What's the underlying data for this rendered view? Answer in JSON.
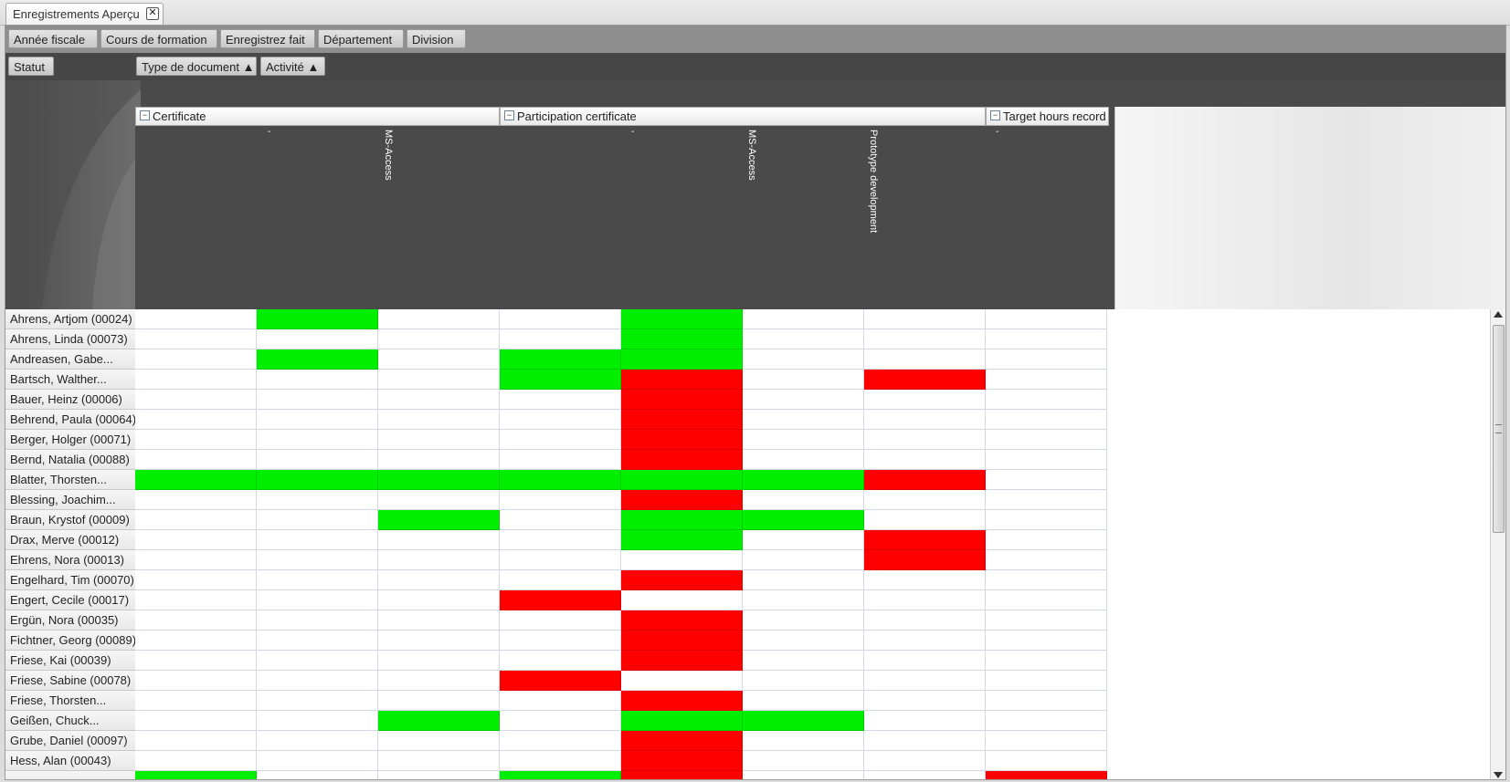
{
  "tab": {
    "label": "Enregistrements Aperçu",
    "close_glyph": "✕"
  },
  "filters": [
    "Année fiscale",
    "Cours de formation",
    "Enregistrez fait",
    "Département",
    "Division"
  ],
  "row_field": "Statut",
  "column_fields": [
    "Type de document ▲",
    "Activité ▲"
  ],
  "groups": [
    {
      "label": "Certificate",
      "columns": [
        "-",
        "",
        "MS-Access"
      ]
    },
    {
      "label": "Participation certificate",
      "columns": [
        "-",
        "",
        "MS-Access",
        "Prototype development"
      ]
    },
    {
      "label": "Target hours record",
      "columns": [
        "-"
      ]
    }
  ],
  "colors": {
    "green": "#00ee00",
    "red": "#ff0000"
  },
  "legend_codes": {
    "G": "green",
    "R": "red",
    "": "empty"
  },
  "rows": [
    {
      "name": "Ahrens, Artjom (00024)",
      "cells": [
        "",
        "G",
        "",
        "",
        "G",
        "",
        "",
        ""
      ]
    },
    {
      "name": "Ahrens, Linda (00073)",
      "cells": [
        "",
        "",
        "",
        "",
        "G",
        "",
        "",
        ""
      ]
    },
    {
      "name": "Andreasen, Gabe...",
      "cells": [
        "",
        "G",
        "",
        "G",
        "G",
        "",
        "",
        ""
      ]
    },
    {
      "name": "Bartsch, Walther...",
      "cells": [
        "",
        "",
        "",
        "G",
        "R",
        "",
        "R",
        ""
      ]
    },
    {
      "name": "Bauer, Heinz (00006)",
      "cells": [
        "",
        "",
        "",
        "",
        "R",
        "",
        "",
        ""
      ]
    },
    {
      "name": "Behrend, Paula (00064)",
      "cells": [
        "",
        "",
        "",
        "",
        "R",
        "",
        "",
        ""
      ]
    },
    {
      "name": "Berger, Holger (00071)",
      "cells": [
        "",
        "",
        "",
        "",
        "R",
        "",
        "",
        ""
      ]
    },
    {
      "name": "Bernd, Natalia (00088)",
      "cells": [
        "",
        "",
        "",
        "",
        "R",
        "",
        "",
        ""
      ]
    },
    {
      "name": "Blatter, Thorsten...",
      "cells": [
        "G",
        "G",
        "G",
        "G",
        "G",
        "G",
        "R",
        ""
      ]
    },
    {
      "name": "Blessing, Joachim...",
      "cells": [
        "",
        "",
        "",
        "",
        "R",
        "",
        "",
        ""
      ]
    },
    {
      "name": "Braun, Krystof (00009)",
      "cells": [
        "",
        "",
        "G",
        "",
        "G",
        "G",
        "",
        ""
      ]
    },
    {
      "name": "Drax, Merve (00012)",
      "cells": [
        "",
        "",
        "",
        "",
        "G",
        "",
        "R",
        ""
      ]
    },
    {
      "name": "Ehrens, Nora (00013)",
      "cells": [
        "",
        "",
        "",
        "",
        "",
        "",
        "R",
        ""
      ]
    },
    {
      "name": "Engelhard, Tim (00070)",
      "cells": [
        "",
        "",
        "",
        "",
        "R",
        "",
        "",
        ""
      ]
    },
    {
      "name": "Engert, Cecile (00017)",
      "cells": [
        "",
        "",
        "",
        "R",
        "",
        "",
        "",
        ""
      ]
    },
    {
      "name": "Ergün, Nora (00035)",
      "cells": [
        "",
        "",
        "",
        "",
        "R",
        "",
        "",
        ""
      ]
    },
    {
      "name": "Fichtner, Georg (00089)",
      "cells": [
        "",
        "",
        "",
        "",
        "R",
        "",
        "",
        ""
      ]
    },
    {
      "name": "Friese, Kai (00039)",
      "cells": [
        "",
        "",
        "",
        "",
        "R",
        "",
        "",
        ""
      ]
    },
    {
      "name": "Friese, Sabine (00078)",
      "cells": [
        "",
        "",
        "",
        "R",
        "",
        "",
        "",
        ""
      ]
    },
    {
      "name": "Friese, Thorsten...",
      "cells": [
        "",
        "",
        "",
        "",
        "R",
        "",
        "",
        ""
      ]
    },
    {
      "name": "Geißen, Chuck...",
      "cells": [
        "",
        "",
        "G",
        "",
        "G",
        "G",
        "",
        ""
      ]
    },
    {
      "name": "Grube, Daniel (00097)",
      "cells": [
        "",
        "",
        "",
        "",
        "R",
        "",
        "",
        ""
      ]
    },
    {
      "name": "Hess, Alan (00043)",
      "cells": [
        "",
        "",
        "",
        "",
        "R",
        "",
        "",
        ""
      ]
    },
    {
      "name": "",
      "cells": [
        "G",
        "",
        "",
        "G",
        "R",
        "",
        "",
        "R"
      ]
    }
  ]
}
